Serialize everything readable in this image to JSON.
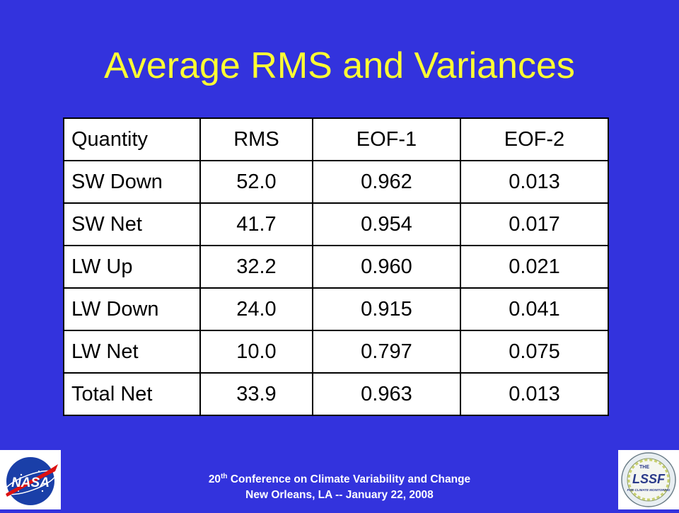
{
  "slide": {
    "title": "Average RMS and Variances"
  },
  "table": {
    "headers": [
      "Quantity",
      "RMS",
      "EOF-1",
      "EOF-2"
    ],
    "rows": [
      [
        "SW Down",
        "52.0",
        "0.962",
        "0.013"
      ],
      [
        "SW Net",
        "41.7",
        "0.954",
        "0.017"
      ],
      [
        "LW Up",
        "32.2",
        "0.960",
        "0.021"
      ],
      [
        "LW Down",
        "24.0",
        "0.915",
        "0.041"
      ],
      [
        "LW Net",
        "10.0",
        "0.797",
        "0.075"
      ],
      [
        "Total Net",
        "33.9",
        "0.963",
        "0.013"
      ]
    ]
  },
  "footer": {
    "line1_num": "20",
    "line1_sup": "th",
    "line1_rest": " Conference on Climate Variability and Change",
    "line2": "New Orleans, LA -- January 22, 2008"
  },
  "logos": {
    "left_text": "NASA",
    "right_text": "LSSF",
    "right_small": "THE",
    "right_caption": "FOR CLIMATE MONITORING"
  }
}
